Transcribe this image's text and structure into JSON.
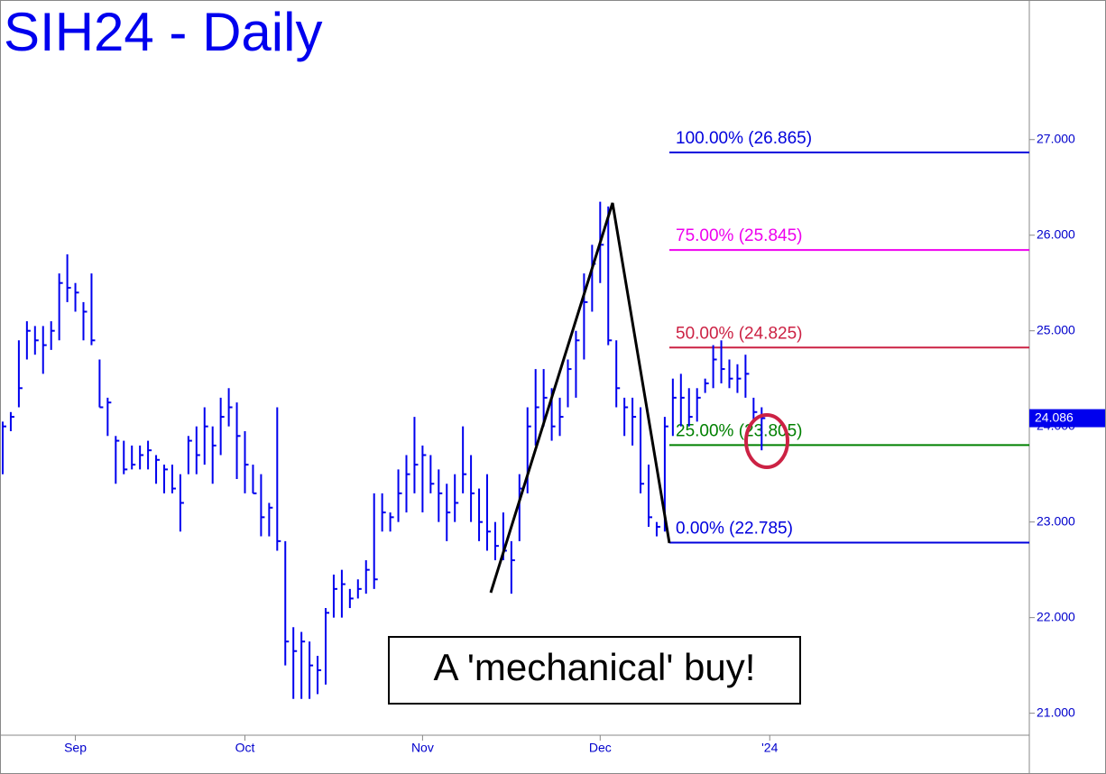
{
  "chart_data": {
    "type": "ohlc",
    "title": "SIH24 - Daily",
    "categories": [
      null,
      null,
      null,
      null,
      null,
      null,
      null,
      null,
      null,
      "Sep",
      null,
      null,
      null,
      null,
      null,
      null,
      null,
      null,
      null,
      null,
      null,
      null,
      null,
      null,
      null,
      null,
      null,
      null,
      null,
      null,
      "Oct",
      null,
      null,
      null,
      null,
      null,
      null,
      null,
      null,
      null,
      null,
      null,
      null,
      null,
      null,
      null,
      null,
      null,
      null,
      null,
      null,
      null,
      "Nov",
      null,
      null,
      null,
      null,
      null,
      null,
      null,
      null,
      null,
      null,
      null,
      null,
      null,
      null,
      null,
      null,
      null,
      null,
      null,
      null,
      null,
      "Dec",
      null,
      null,
      null,
      null,
      null,
      null,
      null,
      null,
      null,
      null,
      null,
      null,
      null,
      null,
      null,
      null,
      null,
      null,
      null,
      null,
      "'24"
    ],
    "high": [
      24.05,
      24.15,
      24.9,
      25.1,
      25.05,
      25.05,
      25.1,
      25.6,
      25.8,
      25.5,
      25.3,
      25.6,
      24.7,
      24.3,
      23.9,
      23.85,
      23.8,
      23.8,
      23.85,
      23.7,
      23.6,
      23.6,
      23.5,
      23.9,
      24.0,
      24.2,
      24.0,
      24.3,
      24.4,
      24.25,
      23.95,
      23.6,
      23.5,
      23.2,
      24.2,
      22.8,
      21.9,
      21.85,
      21.75,
      21.6,
      22.1,
      22.45,
      22.5,
      22.3,
      22.4,
      22.6,
      23.3,
      23.3,
      23.1,
      23.55,
      23.7,
      24.1,
      23.8,
      23.7,
      23.55,
      23.4,
      23.5,
      24.0,
      23.7,
      23.35,
      23.5,
      23.0,
      23.1,
      22.8,
      23.5,
      24.2,
      24.6,
      24.6,
      24.4,
      24.3,
      24.7,
      25.0,
      25.6,
      25.9,
      26.35,
      26.3,
      24.9,
      24.3,
      24.3,
      24.2,
      23.6,
      23.0,
      24.1,
      24.5,
      24.55,
      24.4,
      24.4,
      24.5,
      24.85,
      24.9,
      24.7,
      24.65,
      24.75,
      24.3,
      24.2,
      null
    ],
    "low": [
      23.5,
      23.95,
      24.2,
      24.7,
      24.75,
      24.55,
      24.8,
      24.9,
      25.3,
      25.2,
      24.9,
      24.85,
      24.2,
      23.9,
      23.4,
      23.5,
      23.55,
      23.55,
      23.55,
      23.4,
      23.3,
      23.3,
      22.9,
      23.5,
      23.5,
      23.6,
      23.4,
      23.7,
      24.0,
      23.45,
      23.3,
      23.3,
      22.85,
      22.85,
      22.7,
      21.5,
      21.15,
      21.15,
      21.15,
      21.2,
      21.3,
      22.0,
      22.0,
      22.1,
      22.2,
      22.25,
      22.3,
      22.9,
      22.9,
      23.0,
      23.1,
      23.3,
      23.1,
      23.3,
      23.0,
      22.8,
      23.0,
      23.3,
      23.0,
      22.8,
      22.7,
      22.6,
      22.6,
      22.25,
      22.8,
      23.3,
      23.8,
      24.0,
      23.85,
      23.9,
      24.2,
      24.3,
      24.7,
      25.2,
      25.5,
      24.85,
      24.2,
      23.9,
      23.8,
      23.3,
      22.95,
      22.85,
      22.9,
      23.9,
      24.0,
      24.0,
      24.05,
      24.35,
      24.4,
      24.45,
      24.4,
      24.35,
      24.3,
      24.05,
      23.75,
      null
    ],
    "close": [
      24.0,
      24.1,
      24.4,
      25.0,
      24.9,
      24.85,
      25.0,
      25.5,
      25.45,
      25.4,
      25.2,
      24.9,
      24.2,
      24.25,
      23.85,
      23.55,
      23.6,
      23.7,
      23.75,
      23.65,
      23.55,
      23.35,
      23.2,
      23.85,
      23.7,
      24.0,
      23.8,
      24.1,
      24.2,
      23.9,
      23.6,
      23.3,
      23.05,
      23.15,
      22.8,
      21.75,
      21.65,
      21.75,
      21.5,
      21.45,
      22.05,
      22.3,
      22.35,
      22.2,
      22.3,
      22.5,
      22.4,
      23.1,
      23.05,
      23.3,
      23.5,
      23.6,
      23.7,
      23.4,
      23.3,
      23.1,
      23.2,
      23.5,
      23.3,
      23.0,
      22.9,
      22.75,
      22.7,
      22.6,
      23.35,
      24.0,
      24.2,
      24.3,
      24.0,
      24.1,
      24.6,
      24.9,
      25.3,
      25.7,
      25.9,
      24.9,
      24.4,
      24.2,
      24.1,
      23.4,
      23.05,
      22.95,
      24.0,
      24.3,
      24.3,
      24.1,
      24.3,
      24.45,
      24.7,
      24.6,
      24.5,
      24.5,
      24.55,
      24.15,
      24.086,
      null
    ],
    "color": "#0000ee",
    "ylim": [
      20.77,
      28.46
    ],
    "yticks": [
      {
        "value": 21,
        "label": "21.000"
      },
      {
        "value": 22,
        "label": "22.000"
      },
      {
        "value": 23,
        "label": "23.000"
      },
      {
        "value": 24,
        "label": "24.000"
      },
      {
        "value": 25,
        "label": "25.000"
      },
      {
        "value": 26,
        "label": "26.000"
      },
      {
        "value": 27,
        "label": "27.000"
      }
    ],
    "levels": [
      {
        "label": "100.00% (26.865)",
        "value": 26.865,
        "color": "#0000dd"
      },
      {
        "label": "75.00% (25.845)",
        "value": 25.845,
        "color": "#ee00ee"
      },
      {
        "label": "50.00% (24.825)",
        "value": 24.825,
        "color": "#cc2244"
      },
      {
        "label": "25.00% (23.805)",
        "value": 23.805,
        "color": "#008000"
      },
      {
        "label": "0.00% (22.785)",
        "value": 22.785,
        "color": "#0000dd"
      }
    ],
    "annotation": "A 'mechanical' buy!"
  }
}
